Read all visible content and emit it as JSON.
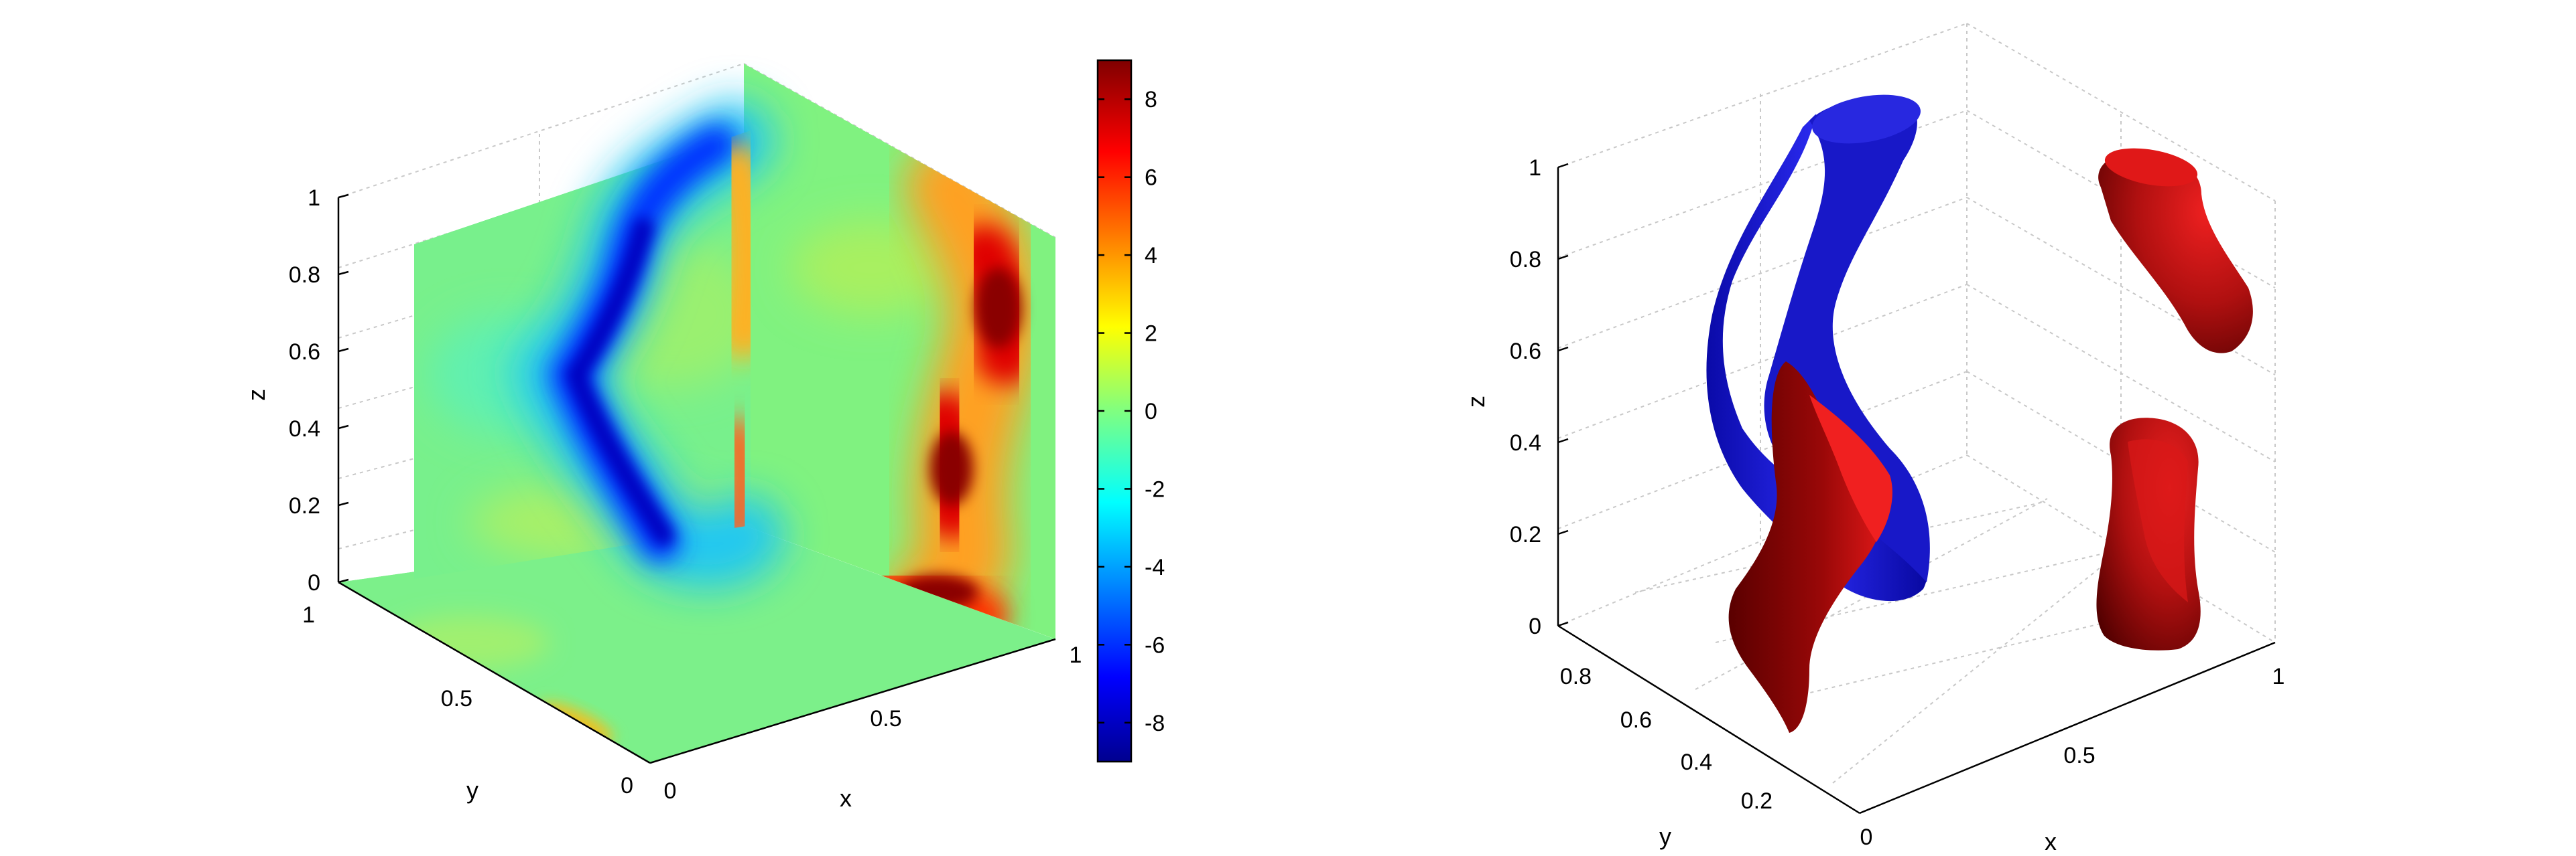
{
  "chart_data": [
    {
      "type": "heatmap",
      "title": "",
      "xlabel": "x",
      "ylabel": "y",
      "zlabel": "z",
      "x_ticks": [
        "0",
        "0.5",
        "1"
      ],
      "y_ticks": [
        "0",
        "0.5",
        "1"
      ],
      "z_ticks": [
        "0",
        "0.2",
        "0.4",
        "0.6",
        "0.8",
        "1"
      ],
      "xlim": [
        0,
        1
      ],
      "ylim": [
        0,
        1
      ],
      "zlim": [
        0,
        1
      ],
      "grid": true,
      "colormap": "jet",
      "colorbar": {
        "ticks": [
          "8",
          "6",
          "4",
          "2",
          "0",
          "-2",
          "-4",
          "-6",
          "-8"
        ],
        "range": [
          -9,
          9
        ]
      },
      "features": [
        {
          "sign": "negative",
          "value": -8.5
        },
        {
          "sign": "positive",
          "value": 8.5
        }
      ]
    },
    {
      "type": "isosurface",
      "title": "",
      "xlabel": "x",
      "ylabel": "y",
      "zlabel": "z",
      "x_ticks": [
        "0",
        "0.5",
        "1"
      ],
      "y_ticks": [
        "0.2",
        "0.4",
        "0.6",
        "0.8"
      ],
      "z_ticks": [
        "0",
        "0.2",
        "0.4",
        "0.6",
        "0.8",
        "1"
      ],
      "xlim": [
        0,
        1
      ],
      "ylim": [
        0.1,
        0.9
      ],
      "zlim": [
        0,
        1
      ],
      "grid": true,
      "surfaces": [
        {
          "color": "#1010c8"
        },
        {
          "color": "#c01010"
        },
        {
          "color": "#c01010"
        },
        {
          "color": "#c01010"
        }
      ]
    }
  ]
}
